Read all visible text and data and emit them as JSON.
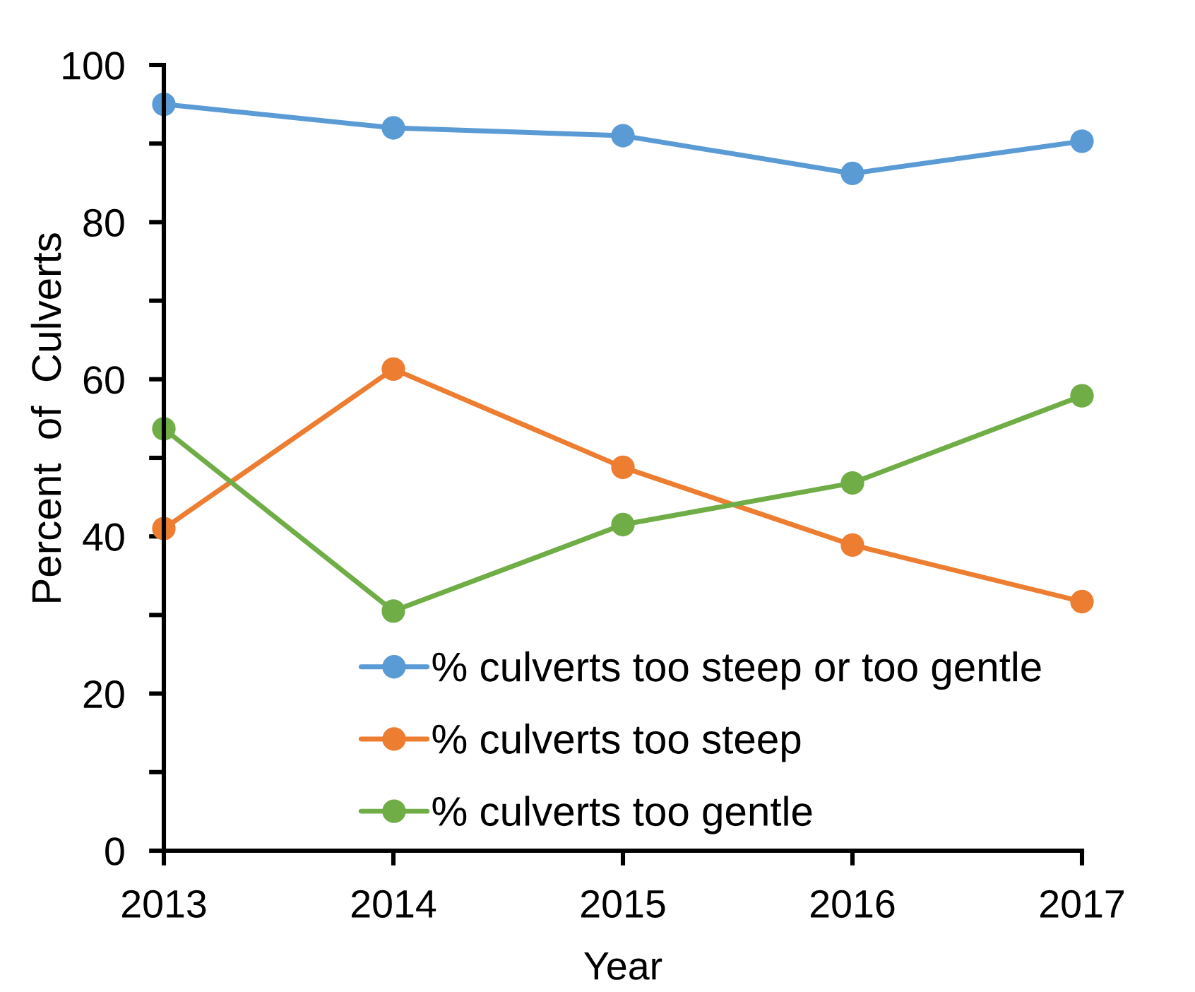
{
  "chart_data": {
    "type": "line",
    "xlabel": "Year",
    "ylabel": "Percent  of  Culverts",
    "categories": [
      "2013",
      "2014",
      "2015",
      "2016",
      "2017"
    ],
    "series": [
      {
        "name": "% culverts too steep or too gentle",
        "color": "#5b9bd5",
        "values": [
          95,
          92,
          91,
          86.2,
          90.3
        ]
      },
      {
        "name": "% culverts too steep",
        "color": "#ed7d31",
        "values": [
          41,
          61.3,
          48.8,
          38.9,
          31.7
        ]
      },
      {
        "name": "% culverts too gentle",
        "color": "#70ad47",
        "values": [
          53.7,
          30.5,
          41.5,
          46.8,
          57.9
        ]
      }
    ],
    "ylim": [
      0,
      100
    ],
    "yticks": [
      0,
      {
        "value": 10,
        "label": null
      },
      20,
      {
        "value": 30,
        "label": null
      },
      40,
      {
        "value": 50,
        "label": null
      },
      60,
      {
        "value": 70,
        "label": null
      },
      80,
      {
        "value": 90,
        "label": null
      },
      100
    ],
    "grid": false,
    "legend": "bottom right",
    "marker": "circle",
    "line_style": "solid"
  }
}
